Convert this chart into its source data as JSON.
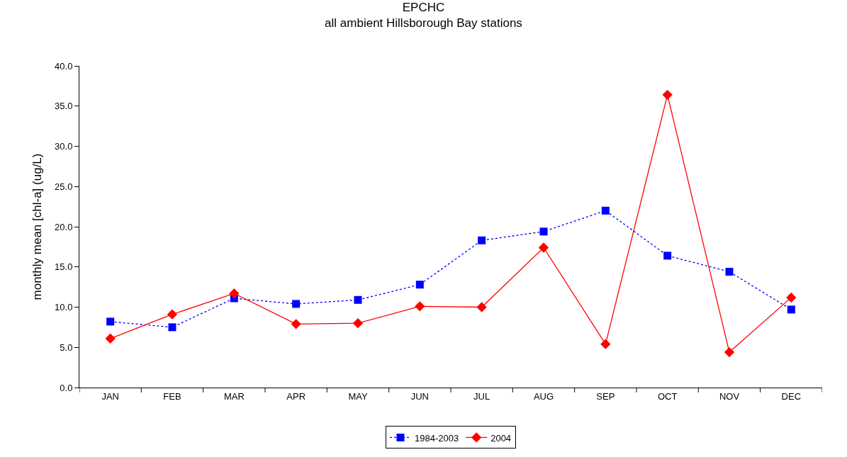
{
  "chart_data": {
    "type": "line",
    "title": "EPCHC",
    "subtitle": "all ambient Hillsborough Bay stations",
    "ylabel": "monthly mean [chl-a] (ug/L)",
    "categories": [
      "JAN",
      "FEB",
      "MAR",
      "APR",
      "MAY",
      "JUN",
      "JUL",
      "AUG",
      "SEP",
      "OCT",
      "NOV",
      "DEC"
    ],
    "series": [
      {
        "name": "1984-2003",
        "color": "#0000ff",
        "marker": "square",
        "line_style": "dotted",
        "values": [
          8.2,
          7.5,
          11.1,
          10.4,
          10.9,
          12.8,
          18.3,
          19.4,
          22.0,
          16.4,
          14.4,
          9.7
        ]
      },
      {
        "name": "2004",
        "color": "#ff0000",
        "marker": "diamond",
        "line_style": "solid",
        "values": [
          6.1,
          9.1,
          11.7,
          7.9,
          8.0,
          10.1,
          10.0,
          17.4,
          5.4,
          36.4,
          4.4,
          11.2
        ]
      }
    ],
    "ylim": [
      0,
      40
    ],
    "yticks": [
      {
        "value": 0,
        "label": "0.0"
      },
      {
        "value": 5,
        "label": "5.0"
      },
      {
        "value": 10,
        "label": "10.0"
      },
      {
        "value": 15,
        "label": "15.0"
      },
      {
        "value": 20,
        "label": "20.0"
      },
      {
        "value": 25,
        "label": "25.0"
      },
      {
        "value": 30,
        "label": "30.0"
      },
      {
        "value": 35,
        "label": "35.0"
      },
      {
        "value": 40,
        "label": "40.0"
      }
    ],
    "grid": false,
    "legend": "bottom"
  }
}
